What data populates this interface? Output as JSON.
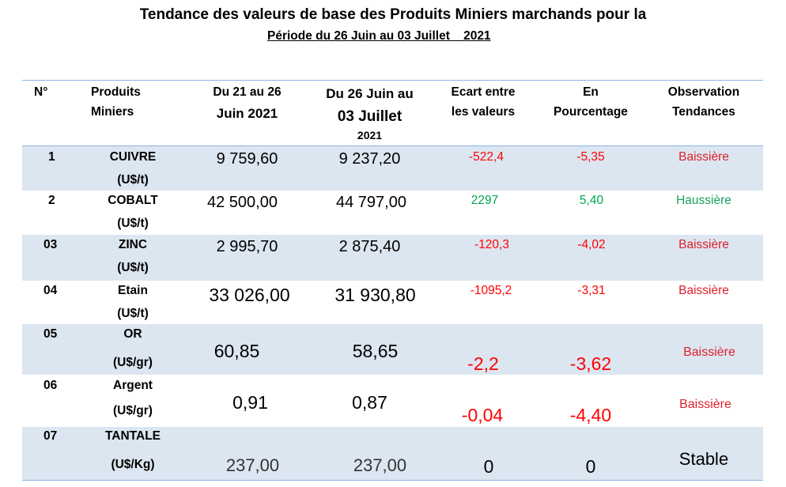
{
  "title": "Tendance des valeurs de base des Produits Miniers marchands pour la",
  "subtitle": "Période du 26 Juin au 03 Juillet    2021",
  "headers": {
    "num": "N°",
    "product_1": "Produits",
    "product_2": "Miniers",
    "period1_1": "Du 21 au 26",
    "period1_2": "Juin 2021",
    "period2_1": "Du 26 Juin au",
    "period2_2": "03 Juillet",
    "period2_3": "2021",
    "diff_1": "Ecart entre",
    "diff_2": "les valeurs",
    "pct_1": "En",
    "pct_2": "Pourcentage",
    "obs_1": "Observation",
    "obs_2": "Tendances"
  },
  "rows": [
    {
      "num": "1",
      "name": "CUIVRE",
      "unit": "(U$/t)",
      "v1": "9 759,60",
      "v2": "9 237,20",
      "diff": "-522,4",
      "pct": "-5,35",
      "trend": "Baissière"
    },
    {
      "num": "2",
      "name": "COBALT",
      "unit": "(U$/t)",
      "v1": "42 500,00",
      "v2": "44 797,00",
      "diff": "2297",
      "pct": "5,40",
      "trend": "Haussière"
    },
    {
      "num": "03",
      "name": "ZINC",
      "unit": "(U$/t)",
      "v1": "2 995,70",
      "v2": "2 875,40",
      "diff": "-120,3",
      "pct": "-4,02",
      "trend": "Baissière"
    },
    {
      "num": "04",
      "name": "Etain",
      "unit": "(U$/t)",
      "v1": "33 026,00",
      "v2": "31 930,80",
      "diff": "-1095,2",
      "pct": "-3,31",
      "trend": "Baissière"
    },
    {
      "num": "05",
      "name": "OR",
      "unit": "(U$/gr)",
      "v1": "60,85",
      "v2": "58,65",
      "diff": "-2,2",
      "pct": "-3,62",
      "trend": "Baissière"
    },
    {
      "num": "06",
      "name": "Argent",
      "unit": "(U$/gr)",
      "v1": "0,91",
      "v2": "0,87",
      "diff": "-0,04",
      "pct": "-4,40",
      "trend": "Baissière"
    },
    {
      "num": "07",
      "name": "TANTALE",
      "unit": "(U$/Kg)",
      "v1": "237,00",
      "v2": "237,00",
      "diff": "0",
      "pct": "0",
      "trend": "Stable"
    }
  ],
  "colors": {
    "band": "#dce6f1",
    "rule": "#8db3e2",
    "negative": "#ff0000",
    "positive": "#00a651"
  }
}
